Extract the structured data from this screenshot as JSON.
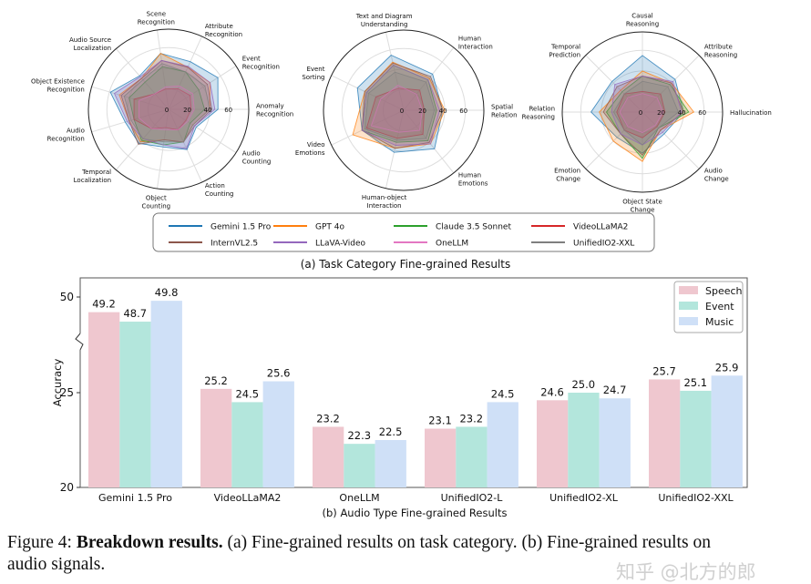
{
  "chart_data": [
    {
      "type": "radar",
      "rlim": [
        0,
        78
      ],
      "rticks": [
        "0",
        "20",
        "40",
        "60"
      ],
      "axes": [
        [
          "Anomaly",
          "Recognition"
        ],
        [
          "Event",
          "Recognition"
        ],
        [
          "Attribute",
          "Recognition"
        ],
        [
          "Scene",
          "Recognition"
        ],
        [
          "Audio Source",
          "Localization"
        ],
        [
          "Object Existence",
          "Recognition"
        ],
        [
          "Audio",
          "Recognition"
        ],
        [
          "Temporal",
          "Localization"
        ],
        [
          "Object",
          "Counting"
        ],
        [
          "Action",
          "Counting"
        ],
        [
          "Audio",
          "Counting"
        ]
      ],
      "series": [
        {
          "name": "Gemini 1.5 Pro",
          "values": [
            48,
            57,
            51,
            55,
            43,
            59,
            44,
            44,
            37,
            43,
            32
          ]
        },
        {
          "name": "GPT 4o",
          "values": [
            40,
            48,
            45,
            55,
            40,
            50,
            40,
            42,
            30,
            35,
            28
          ]
        },
        {
          "name": "Claude 3.5 Sonnet",
          "values": [
            35,
            35,
            40,
            42,
            35,
            40,
            35,
            40,
            35,
            35,
            25
          ]
        },
        {
          "name": "VideoLLaMA2",
          "values": [
            22,
            25,
            22,
            20,
            20,
            35,
            35,
            25,
            18,
            22,
            20
          ]
        },
        {
          "name": "InternVL2.5",
          "values": [
            42,
            45,
            45,
            48,
            40,
            48,
            40,
            45,
            30,
            35,
            30
          ]
        },
        {
          "name": "LLaVA-Video",
          "values": [
            45,
            48,
            46,
            48,
            42,
            55,
            42,
            38,
            35,
            42,
            30
          ]
        },
        {
          "name": "OneLLM",
          "values": [
            25,
            28,
            25,
            22,
            20,
            30,
            30,
            25,
            20,
            22,
            22
          ]
        },
        {
          "name": "UnifiedIO2-XXL",
          "values": [
            40,
            42,
            40,
            45,
            38,
            45,
            38,
            38,
            32,
            35,
            28
          ]
        }
      ]
    },
    {
      "type": "radar",
      "rlim": [
        0,
        78
      ],
      "rticks": [
        "0",
        "20",
        "40",
        "60"
      ],
      "axes": [
        [
          "Spatial",
          "Relation"
        ],
        [
          "Human",
          "Interaction"
        ],
        [
          "Text and Diagram",
          "Understanding"
        ],
        [
          "Event",
          "Sorting"
        ],
        [
          "Video",
          "Emotions"
        ],
        [
          "Human-object",
          "Interaction"
        ],
        [
          "Human",
          "Emotions"
        ]
      ],
      "series": [
        {
          "name": "Gemini 1.5 Pro",
          "values": [
            38,
            45,
            55,
            50,
            45,
            42,
            48
          ]
        },
        {
          "name": "GPT 4o",
          "values": [
            40,
            40,
            48,
            42,
            55,
            38,
            42
          ]
        },
        {
          "name": "Claude 3.5 Sonnet",
          "values": [
            32,
            38,
            45,
            40,
            45,
            32,
            38
          ]
        },
        {
          "name": "VideoLLaMA2",
          "values": [
            20,
            25,
            22,
            30,
            40,
            28,
            30
          ]
        },
        {
          "name": "InternVL2.5",
          "values": [
            38,
            42,
            47,
            42,
            45,
            38,
            40
          ]
        },
        {
          "name": "LLaVA-Video",
          "values": [
            35,
            38,
            45,
            40,
            45,
            35,
            42
          ]
        },
        {
          "name": "OneLLM",
          "values": [
            18,
            20,
            25,
            25,
            35,
            22,
            25
          ]
        },
        {
          "name": "UnifiedIO2-XXL",
          "values": [
            30,
            35,
            38,
            38,
            42,
            30,
            35
          ]
        }
      ]
    },
    {
      "type": "radar",
      "rlim": [
        0,
        78
      ],
      "rticks": [
        "0",
        "20",
        "40",
        "60"
      ],
      "axes": [
        [
          "Hallucination"
        ],
        [
          "Attribute",
          "Reasoning"
        ],
        [
          "Causal",
          "Reasoning"
        ],
        [
          "Temporal",
          "Prediction"
        ],
        [
          "Relation",
          "Reasoning"
        ],
        [
          "Emotion",
          "Change"
        ],
        [
          "Object State",
          "Change"
        ],
        [
          "Audio",
          "Change"
        ]
      ],
      "series": [
        {
          "name": "Gemini 1.5 Pro",
          "values": [
            40,
            45,
            55,
            42,
            50,
            35,
            40,
            30
          ]
        },
        {
          "name": "GPT 4o",
          "values": [
            50,
            40,
            40,
            30,
            42,
            40,
            48,
            25
          ]
        },
        {
          "name": "Claude 3.5 Sonnet",
          "values": [
            45,
            38,
            35,
            28,
            35,
            30,
            45,
            22
          ]
        },
        {
          "name": "VideoLLaMA2",
          "values": [
            22,
            25,
            20,
            25,
            25,
            25,
            25,
            20
          ]
        },
        {
          "name": "InternVL2.5",
          "values": [
            40,
            40,
            35,
            35,
            38,
            30,
            42,
            25
          ]
        },
        {
          "name": "LLaVA-Video",
          "values": [
            38,
            42,
            35,
            38,
            30,
            30,
            32,
            28
          ]
        },
        {
          "name": "OneLLM",
          "values": [
            20,
            20,
            18,
            20,
            22,
            20,
            20,
            18
          ]
        },
        {
          "name": "UnifiedIO2-XXL",
          "values": [
            35,
            35,
            30,
            25,
            28,
            25,
            32,
            22
          ]
        }
      ]
    },
    {
      "type": "bar",
      "title": "(b) Audio Type Fine-grained Results",
      "xlabel": "",
      "ylabel": "Accuracy",
      "ylim": [
        20,
        51
      ],
      "y_break": [
        27.7,
        47.6
      ],
      "yticks": [
        "20",
        "25",
        "50"
      ],
      "legend_position": "top-right",
      "categories": [
        "Gemini 1.5 Pro",
        "VideoLLaMA2",
        "OneLLM",
        "UnifiedIO2-L",
        "UnifiedIO2-XL",
        "UnifiedIO2-XXL"
      ],
      "series": [
        {
          "name": "Speech",
          "color": "#efc7cf",
          "values": [
            49.2,
            25.2,
            23.2,
            23.1,
            24.6,
            25.7
          ]
        },
        {
          "name": "Event",
          "color": "#b3e6dc",
          "values": [
            48.7,
            24.5,
            22.3,
            23.2,
            25.0,
            25.1
          ]
        },
        {
          "name": "Music",
          "color": "#cfe0f7",
          "values": [
            49.8,
            25.6,
            22.5,
            24.5,
            24.7,
            25.9
          ]
        }
      ]
    }
  ],
  "legend": {
    "models": [
      {
        "name": "Gemini 1.5 Pro",
        "color": "#1f77b4"
      },
      {
        "name": "GPT 4o",
        "color": "#ff7f0e"
      },
      {
        "name": "Claude 3.5 Sonnet",
        "color": "#2ca02c"
      },
      {
        "name": "VideoLLaMA2",
        "color": "#d62728"
      },
      {
        "name": "InternVL2.5",
        "color": "#8c564b"
      },
      {
        "name": "LLaVA-Video",
        "color": "#9467bd"
      },
      {
        "name": "OneLLM",
        "color": "#e377c2"
      },
      {
        "name": "UnifiedIO2-XXL",
        "color": "#7f7f7f"
      }
    ]
  },
  "subcaption_a": "(a) Task Category Fine-grained Results",
  "caption": {
    "label": "Figure 4:",
    "bold": "Breakdown results.",
    "line1_rest": "(a) Fine-grained results on task category. (b) Fine-grained results on",
    "line2": "audio signals."
  },
  "watermark": "知乎 @北方的郎"
}
